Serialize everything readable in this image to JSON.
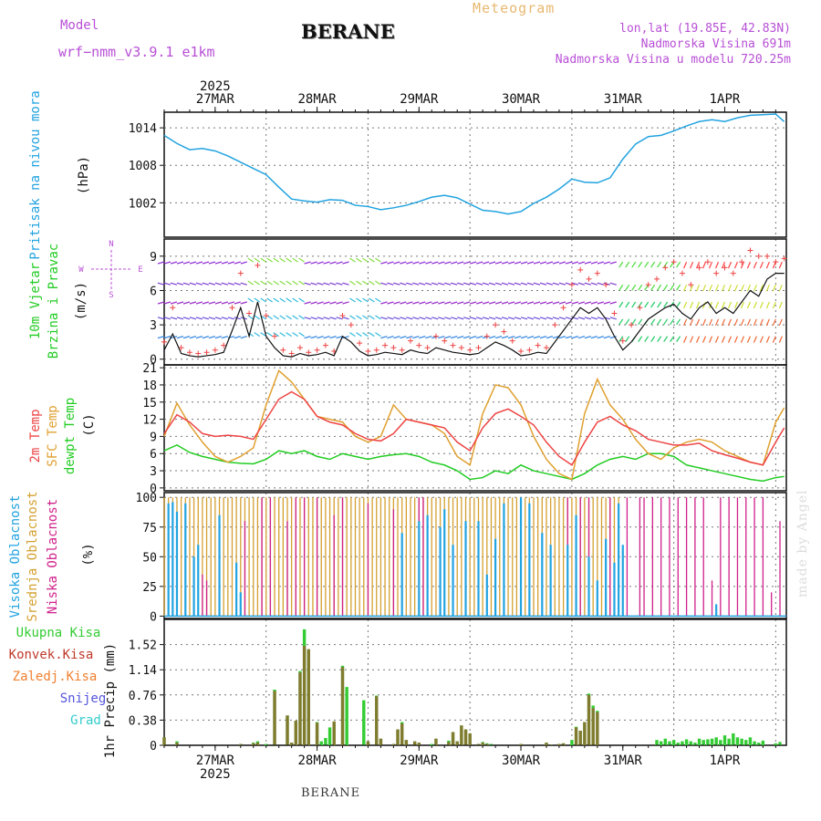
{
  "header": {
    "model_label": "Model",
    "model_name": "wrf−nmm_v3.9.1  e1km",
    "station": "BERANE",
    "meteogram": "Meteogram",
    "lonlat": "lon,lat (19.85E, 42.83N)",
    "elevation": "Nadmorska Visina 691m",
    "model_elevation": "Nadmorska Visina u modelu 720.25m"
  },
  "time_axis": {
    "year": "2025",
    "day_labels": [
      "27MAR",
      "28MAR",
      "29MAR",
      "30MAR",
      "31MAR",
      "1APR"
    ]
  },
  "footer": {
    "station": "BERANE"
  },
  "watermark": "made by Angel",
  "colors": {
    "pressure": "#22a3e0",
    "temp2m": "#ee4444",
    "sfc": "#e0a030",
    "dewpt": "#22cc22",
    "wind_speed": "#111111",
    "gust": "#ee4444",
    "cloud_high": "#22a3e0",
    "cloud_mid": "#d4a030",
    "cloud_low": "#d0208a",
    "precip_total": "#33cc33",
    "precip_conv": "#c0392b",
    "precip_frz": "#f08030",
    "precip_snow": "#5555dd",
    "precip_hail": "#33cccc",
    "purple": "#b84fd6"
  },
  "chart_data": [
    {
      "type": "line",
      "title": "",
      "ylabel_1": "Pritisak na nivou mora",
      "ylabel_2": "(hPa)",
      "ylim": [
        996.5,
        1016.5
      ],
      "yticks": [
        "1014",
        "1008",
        "1002"
      ],
      "grid": true,
      "x_hours": [
        0,
        3,
        6,
        9,
        12,
        15,
        18,
        21,
        24,
        27,
        30,
        33,
        36,
        39,
        42,
        45,
        48,
        51,
        54,
        57,
        60,
        63,
        66,
        69,
        72,
        75,
        78,
        81,
        84,
        87,
        90,
        93,
        96,
        99,
        102,
        105,
        108,
        111,
        114,
        117,
        120,
        123,
        126,
        129,
        132,
        135,
        138,
        141,
        144,
        146
      ],
      "series": [
        {
          "values": [
            1012.8,
            1011.5,
            1010.5,
            1010.7,
            1010.3,
            1009.5,
            1008.5,
            1007.5,
            1006.5,
            1004.5,
            1002.6,
            1002.3,
            1002.1,
            1002.5,
            1002.4,
            1001.6,
            1001.4,
            1000.9,
            1001.2,
            1001.6,
            1002.2,
            1002.9,
            1003.2,
            1002.8,
            1001.8,
            1000.8,
            1000.6,
            1000.2,
            1000.6,
            1001.9,
            1002.9,
            1004.2,
            1005.8,
            1005.3,
            1005.2,
            1006.0,
            1009.0,
            1011.4,
            1012.6,
            1012.8,
            1013.5,
            1014.3,
            1015.0,
            1015.3,
            1015.0,
            1015.6,
            1016.0,
            1016.1,
            1016.2,
            1015.0
          ]
        }
      ]
    },
    {
      "type": "line",
      "title": "",
      "ylabel_1": "10m Vjetar",
      "ylabel_2": "Brzina i Pravac",
      "ylabel_3": "(m/s)",
      "compass": [
        "N",
        "W",
        "E",
        "S"
      ],
      "ylim": [
        -0.5,
        10.5
      ],
      "yticks": [
        "9",
        "6",
        "3",
        "0"
      ],
      "grid": true,
      "x_hours": [
        0,
        2,
        4,
        6,
        8,
        10,
        12,
        14,
        16,
        18,
        20,
        22,
        24,
        26,
        28,
        30,
        32,
        34,
        36,
        38,
        40,
        42,
        44,
        46,
        48,
        50,
        52,
        54,
        56,
        58,
        60,
        62,
        64,
        66,
        68,
        70,
        72,
        74,
        76,
        78,
        80,
        82,
        84,
        86,
        88,
        90,
        92,
        94,
        96,
        98,
        100,
        102,
        104,
        106,
        108,
        110,
        112,
        114,
        116,
        118,
        120,
        122,
        124,
        126,
        128,
        130,
        132,
        134,
        136,
        138,
        140,
        142,
        144,
        146
      ],
      "series": [
        {
          "name": "",
          "values": [
            0.8,
            2.2,
            0.5,
            0.3,
            0.2,
            0.3,
            0.4,
            0.6,
            2.5,
            4.5,
            2.0,
            5.0,
            2.0,
            1.0,
            0.3,
            0.2,
            0.5,
            0.3,
            0.4,
            0.6,
            0.3,
            2.0,
            1.5,
            0.7,
            0.3,
            0.4,
            0.6,
            0.5,
            0.4,
            0.8,
            0.6,
            0.5,
            1.0,
            0.8,
            0.6,
            0.5,
            0.4,
            0.5,
            1.0,
            1.5,
            1.2,
            0.8,
            0.3,
            0.4,
            0.6,
            0.5,
            1.5,
            2.5,
            3.5,
            4.5,
            4.0,
            4.5,
            3.5,
            2.0,
            0.8,
            1.5,
            2.5,
            3.5,
            4.0,
            4.5,
            4.8,
            4.0,
            3.5,
            4.5,
            5.0,
            4.0,
            4.5,
            4.0,
            5.0,
            6.0,
            5.5,
            7.0,
            7.5,
            7.5
          ]
        },
        {
          "name": "",
          "values": [
            1.5,
            4.5,
            1.0,
            0.6,
            0.5,
            0.6,
            0.8,
            1.2,
            4.5,
            7.5,
            4.0,
            8.2,
            3.8,
            2.0,
            0.8,
            0.5,
            1.0,
            0.6,
            0.8,
            1.2,
            0.7,
            3.8,
            3.0,
            1.4,
            0.7,
            0.8,
            1.2,
            1.0,
            0.8,
            1.6,
            1.2,
            1.0,
            2.0,
            1.6,
            1.2,
            1.0,
            0.8,
            1.0,
            2.0,
            3.0,
            2.4,
            1.6,
            0.7,
            0.8,
            1.2,
            1.0,
            3.0,
            4.5,
            6.5,
            7.8,
            7.0,
            7.5,
            6.5,
            4.0,
            1.6,
            3.0,
            4.5,
            6.5,
            7.0,
            8.0,
            8.5,
            7.5,
            6.5,
            8.0,
            8.5,
            7.5,
            8.0,
            7.5,
            8.5,
            9.5,
            9.0,
            9.0,
            8.5,
            8.8
          ]
        }
      ]
    },
    {
      "type": "line",
      "title": "",
      "ylabel_1": "2m Temp",
      "ylabel_2": "SFC Temp",
      "ylabel_3": "dewpt Temp",
      "ylabel_4": "(C)",
      "ylim": [
        -0.5,
        21.5
      ],
      "yticks": [
        "21",
        "18",
        "15",
        "12",
        "9",
        "6",
        "3",
        "0"
      ],
      "grid": true,
      "x_hours": [
        0,
        3,
        6,
        9,
        12,
        15,
        18,
        21,
        24,
        27,
        30,
        33,
        36,
        39,
        42,
        45,
        48,
        51,
        54,
        57,
        60,
        63,
        66,
        69,
        72,
        75,
        78,
        81,
        84,
        87,
        90,
        93,
        96,
        99,
        102,
        105,
        108,
        111,
        114,
        117,
        120,
        123,
        126,
        129,
        132,
        135,
        138,
        141,
        144,
        146
      ],
      "series": [
        {
          "name": "2m Temp",
          "values": [
            9.5,
            12.8,
            11.5,
            9.5,
            9.0,
            9.2,
            9.0,
            8.5,
            12.0,
            15.5,
            16.8,
            15.5,
            12.5,
            11.5,
            11.0,
            9.5,
            8.5,
            8.2,
            9.5,
            12.0,
            11.5,
            11.0,
            10.5,
            8.0,
            6.5,
            10.5,
            13.0,
            13.8,
            12.5,
            11.0,
            8.0,
            5.5,
            4.0,
            8.0,
            11.5,
            12.5,
            11.0,
            10.0,
            8.5,
            8.0,
            7.5,
            7.5,
            7.8,
            6.5,
            5.8,
            5.2,
            4.5,
            4.0,
            8.0,
            10.5
          ]
        },
        {
          "name": "SFC Temp",
          "values": [
            9.0,
            14.8,
            11.0,
            8.0,
            5.5,
            4.5,
            5.5,
            7.0,
            14.5,
            20.5,
            18.5,
            15.5,
            12.5,
            12.0,
            11.5,
            9.0,
            8.0,
            9.0,
            14.5,
            12.0,
            11.5,
            11.0,
            9.5,
            5.5,
            4.0,
            13.0,
            18.0,
            17.5,
            14.5,
            9.0,
            5.0,
            2.5,
            1.5,
            13.0,
            19.0,
            14.5,
            12.0,
            8.5,
            6.0,
            5.0,
            7.0,
            8.0,
            8.5,
            8.0,
            6.5,
            5.5,
            4.5,
            4.0,
            11.5,
            14.0
          ]
        },
        {
          "name": "dewpt Temp",
          "values": [
            6.5,
            7.5,
            6.2,
            5.5,
            5.0,
            4.5,
            4.3,
            4.2,
            5.0,
            6.5,
            6.0,
            6.5,
            5.5,
            5.0,
            6.0,
            5.5,
            5.0,
            5.5,
            5.8,
            6.0,
            5.5,
            4.5,
            4.0,
            3.0,
            1.5,
            1.8,
            3.0,
            2.5,
            4.0,
            3.0,
            2.5,
            2.0,
            1.5,
            2.5,
            4.0,
            5.0,
            5.5,
            5.0,
            6.0,
            6.0,
            5.5,
            4.0,
            3.5,
            3.0,
            2.5,
            2.0,
            1.5,
            1.2,
            1.8,
            2.0
          ]
        }
      ]
    },
    {
      "type": "bar",
      "title": "",
      "ylabel_1": "Visoka Oblacnost",
      "ylabel_2": "Srednja Oblacnost",
      "ylabel_3": "Niska Oblacnost",
      "ylabel_4": "(%)",
      "ylim": [
        -2,
        104
      ],
      "yticks": [
        "100",
        "75",
        "50",
        "25",
        "0"
      ],
      "grid": true,
      "segments": [
        {
          "name": "Visoka Oblacnost",
          "x_hours": [
            1,
            2,
            3,
            5,
            7,
            8,
            13,
            17,
            18,
            56,
            60,
            62,
            65,
            66,
            68,
            71,
            74,
            76,
            78,
            80,
            84,
            86,
            89,
            91,
            95,
            97,
            100,
            102,
            104,
            106,
            107,
            108,
            130
          ],
          "values": [
            95,
            96,
            88,
            95,
            50,
            60,
            85,
            45,
            20,
            70,
            80,
            85,
            75,
            90,
            60,
            80,
            80,
            35,
            65,
            95,
            100,
            95,
            70,
            60,
            60,
            85,
            50,
            30,
            65,
            45,
            95,
            60,
            10
          ]
        },
        {
          "name": "Srednja Oblacnost",
          "x_range": [
            0,
            107
          ],
          "values": [
            100
          ]
        },
        {
          "name": "Niska Oblacnost",
          "x_hours": [
            9,
            10,
            17,
            19,
            23,
            25,
            29,
            31,
            33,
            36,
            40,
            42,
            48,
            54,
            60,
            61,
            80,
            84,
            86,
            95,
            98,
            100,
            105,
            109,
            112,
            113,
            115,
            117,
            119,
            121,
            123,
            125,
            127,
            129,
            131,
            133,
            135,
            137,
            139,
            141,
            143,
            145
          ],
          "values": [
            35,
            30,
            25,
            80,
            100,
            100,
            80,
            100,
            100,
            100,
            85,
            100,
            95,
            90,
            100,
            100,
            70,
            40,
            45,
            100,
            100,
            100,
            100,
            100,
            100,
            100,
            100,
            100,
            100,
            100,
            100,
            100,
            100,
            30,
            100,
            100,
            100,
            100,
            100,
            100,
            20,
            80
          ]
        }
      ]
    },
    {
      "type": "bar",
      "title": "",
      "ylabel_1": "1hr Precip",
      "ylabel_2": "(mm)",
      "legend": [
        "Ukupna Kisa",
        "Konvek.Kisa",
        "Zaledj.Kisa",
        "Snijeg",
        "Grad"
      ],
      "ylim": [
        0,
        1.9
      ],
      "yticks": [
        "1.52",
        "1.14",
        "0.76",
        "0.38",
        "0"
      ],
      "grid": true,
      "bars": {
        "x_hours": [
          0,
          3,
          18,
          21,
          22,
          24,
          26,
          29,
          30,
          31,
          32,
          33,
          34,
          36,
          37,
          38,
          39,
          40,
          42,
          43,
          47,
          48,
          50,
          51,
          54,
          55,
          56,
          57,
          59,
          60,
          63,
          64,
          67,
          68,
          69,
          70,
          71,
          72,
          74,
          75,
          76,
          77,
          84,
          90,
          91,
          93,
          94,
          96,
          97,
          98,
          99,
          100,
          101,
          102,
          116,
          117,
          118,
          119,
          120,
          121,
          122,
          123,
          124,
          125,
          126,
          127,
          128,
          129,
          130,
          131,
          132,
          133,
          134,
          135,
          136,
          137,
          138,
          139,
          140,
          141,
          144,
          145
        ],
        "total": [
          0.12,
          0.06,
          0.02,
          0.04,
          0.06,
          0.02,
          0.84,
          0.45,
          0.04,
          0.37,
          1.12,
          1.75,
          1.45,
          0.35,
          0.06,
          0.11,
          0.27,
          0.36,
          1.2,
          0.88,
          0.68,
          0.06,
          0.75,
          0.1,
          0.02,
          0.24,
          0.35,
          0.08,
          0.06,
          0.04,
          0.02,
          0.1,
          0.07,
          0.2,
          0.06,
          0.3,
          0.24,
          0.18,
          0.02,
          0.05,
          0.03,
          0.02,
          0.02,
          0.04,
          0.01,
          0.02,
          0.03,
          0.08,
          0.28,
          0.22,
          0.35,
          0.78,
          0.6,
          0.52,
          0.08,
          0.06,
          0.1,
          0.06,
          0.08,
          0.04,
          0.06,
          0.09,
          0.06,
          0.04,
          0.1,
          0.08,
          0.09,
          0.1,
          0.12,
          0.08,
          0.15,
          0.1,
          0.18,
          0.12,
          0.1,
          0.08,
          0.12,
          0.06,
          0.04,
          0.07,
          0.03,
          0.05
        ],
        "convective": [
          0.12,
          0.04,
          0.02,
          0.03,
          0.04,
          0.0,
          0.82,
          0.45,
          0.04,
          0.37,
          1.1,
          1.5,
          1.45,
          0.34,
          0.0,
          0.0,
          0.0,
          0.36,
          1.18,
          0.0,
          0.0,
          0.06,
          0.74,
          0.1,
          0.02,
          0.24,
          0.33,
          0.08,
          0.06,
          0.04,
          0.0,
          0.1,
          0.05,
          0.2,
          0.06,
          0.3,
          0.24,
          0.18,
          0.02,
          0.04,
          0.02,
          0.0,
          0.02,
          0.04,
          0.01,
          0.02,
          0.03,
          0.0,
          0.27,
          0.22,
          0.35,
          0.76,
          0.56,
          0.5,
          0.0,
          0.0,
          0.0,
          0.0,
          0.0,
          0.0,
          0.0,
          0.0,
          0.0,
          0.0,
          0.0,
          0.0,
          0.0,
          0.0,
          0.0,
          0.0,
          0.0,
          0.0,
          0.0,
          0.0,
          0.0,
          0.0,
          0.0,
          0.0,
          0.0,
          0.0,
          0.0,
          0.0
        ]
      }
    }
  ]
}
